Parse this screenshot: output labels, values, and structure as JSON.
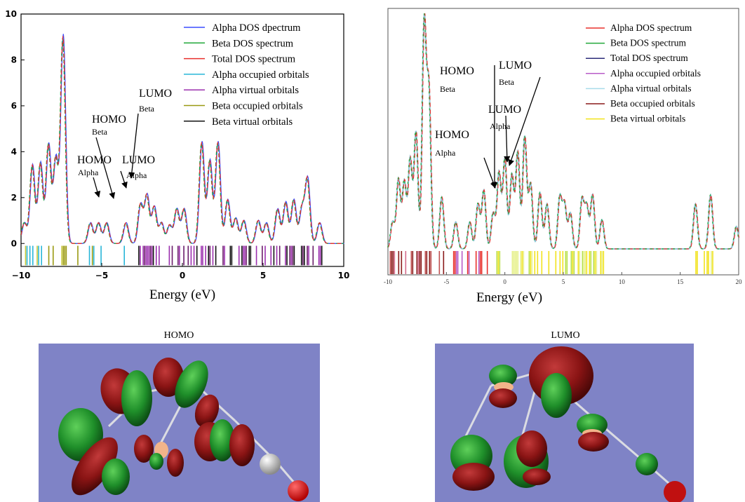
{
  "chart_data": [
    {
      "type": "line",
      "xlabel": "Energy (eV)",
      "xlim": [
        -10,
        10
      ],
      "ylim": [
        -1,
        10
      ],
      "xticks": [
        -10,
        -5,
        0,
        5,
        10
      ],
      "yticks": [
        0,
        2,
        4,
        6,
        8,
        10
      ],
      "legend_position": "top-right",
      "series": [
        {
          "name": "Alpha DOS dpectrum",
          "color": "#3b4dff"
        },
        {
          "name": "Beta DOS spectrum",
          "color": "#22a83a"
        },
        {
          "name": "Total DOS spectrum",
          "color": "#e8302c"
        },
        {
          "name": "Alpha occupied orbitals",
          "color": "#28b6d8"
        },
        {
          "name": "Alpha virtual orbitals",
          "color": "#9b2fae"
        },
        {
          "name": "Beta occupied orbitals",
          "color": "#9a9a12"
        },
        {
          "name": "Beta virtual orbitals",
          "color": "#111111"
        }
      ],
      "peaks": [
        {
          "x": -9.8,
          "y": 0.9
        },
        {
          "x": -9.3,
          "y": 3.4
        },
        {
          "x": -8.8,
          "y": 3.5
        },
        {
          "x": -8.3,
          "y": 4.3
        },
        {
          "x": -7.85,
          "y": 3.7
        },
        {
          "x": -7.4,
          "y": 9.0
        },
        {
          "x": -5.7,
          "y": 0.9
        },
        {
          "x": -5.2,
          "y": 0.9
        },
        {
          "x": -4.7,
          "y": 0.9
        },
        {
          "x": -3.5,
          "y": 0.9
        },
        {
          "x": -2.6,
          "y": 1.7
        },
        {
          "x": -2.2,
          "y": 2.1
        },
        {
          "x": -1.75,
          "y": 1.6
        },
        {
          "x": -1.3,
          "y": 0.9
        },
        {
          "x": -0.8,
          "y": 0.8
        },
        {
          "x": -0.35,
          "y": 1.5
        },
        {
          "x": 0.1,
          "y": 1.5
        },
        {
          "x": 1.2,
          "y": 4.4
        },
        {
          "x": 1.7,
          "y": 3.6
        },
        {
          "x": 2.2,
          "y": 4.4
        },
        {
          "x": 2.8,
          "y": 1.9
        },
        {
          "x": 3.3,
          "y": 1.1
        },
        {
          "x": 3.8,
          "y": 1.0
        },
        {
          "x": 4.7,
          "y": 1.0
        },
        {
          "x": 5.2,
          "y": 0.9
        },
        {
          "x": 5.9,
          "y": 1.5
        },
        {
          "x": 6.4,
          "y": 1.8
        },
        {
          "x": 6.9,
          "y": 1.9
        },
        {
          "x": 7.4,
          "y": 1.5
        },
        {
          "x": 7.75,
          "y": 2.8
        },
        {
          "x": 8.5,
          "y": 0.9
        }
      ],
      "annotations": [
        {
          "big": "HOMO",
          "small": "Alpha"
        },
        {
          "big": "HOMO",
          "small": "Beta"
        },
        {
          "big": "LUMO",
          "small": "Alpha"
        },
        {
          "big": "LUMO",
          "small": "Beta"
        }
      ]
    },
    {
      "type": "line",
      "xlabel": "Energy (eV)",
      "xlim": [
        -10,
        20
      ],
      "xticks": [
        -10,
        -5,
        0,
        5,
        10,
        15,
        20
      ],
      "legend_position": "top-right",
      "series": [
        {
          "name": "Alpha DOS spectrum",
          "color": "#e8302c"
        },
        {
          "name": "Beta DOS spectrum",
          "color": "#22a83a"
        },
        {
          "name": "Total DOS spectrum",
          "color": "#2c2c7a"
        },
        {
          "name": "Alpha occupied orbitals",
          "color": "#b85cc8"
        },
        {
          "name": "Alpha virtual orbitals",
          "color": "#a8dcea"
        },
        {
          "name": "Beta occupied orbitals",
          "color": "#8a1a1a"
        },
        {
          "name": "Beta virtual orbitals",
          "color": "#f2e21a"
        }
      ],
      "peaks": [
        {
          "x": -9.6,
          "y": 1.2
        },
        {
          "x": -9.1,
          "y": 3.1
        },
        {
          "x": -8.6,
          "y": 3.0
        },
        {
          "x": -8.1,
          "y": 4.0
        },
        {
          "x": -7.6,
          "y": 5.2
        },
        {
          "x": -6.9,
          "y": 10.0
        },
        {
          "x": -6.5,
          "y": 7.0
        },
        {
          "x": -5.4,
          "y": 2.3
        },
        {
          "x": -4.2,
          "y": 1.2
        },
        {
          "x": -3.0,
          "y": 1.2
        },
        {
          "x": -2.3,
          "y": 2.0
        },
        {
          "x": -1.8,
          "y": 2.6
        },
        {
          "x": -1.0,
          "y": 1.6
        },
        {
          "x": -0.5,
          "y": 3.4
        },
        {
          "x": 0.0,
          "y": 4.0
        },
        {
          "x": 0.6,
          "y": 3.3
        },
        {
          "x": 1.1,
          "y": 4.3
        },
        {
          "x": 1.7,
          "y": 5.0
        },
        {
          "x": 2.2,
          "y": 2.9
        },
        {
          "x": 3.0,
          "y": 2.5
        },
        {
          "x": 3.6,
          "y": 2.0
        },
        {
          "x": 4.7,
          "y": 2.3
        },
        {
          "x": 5.1,
          "y": 2.0
        },
        {
          "x": 5.6,
          "y": 1.6
        },
        {
          "x": 6.6,
          "y": 2.2
        },
        {
          "x": 7.0,
          "y": 1.9
        },
        {
          "x": 7.5,
          "y": 2.4
        },
        {
          "x": 8.3,
          "y": 1.3
        },
        {
          "x": 16.3,
          "y": 2.0
        },
        {
          "x": 17.6,
          "y": 2.4
        },
        {
          "x": 19.8,
          "y": 1.0
        }
      ],
      "annotations": [
        {
          "big": "HOMO",
          "small": "Beta"
        },
        {
          "big": "LUMO",
          "small": "Beta"
        },
        {
          "big": "LUMO",
          "small": "Alpha"
        },
        {
          "big": "HOMO",
          "small": "Alpha"
        }
      ]
    }
  ],
  "molecules": [
    {
      "label": "HOMO"
    },
    {
      "label": "LUMO"
    }
  ]
}
